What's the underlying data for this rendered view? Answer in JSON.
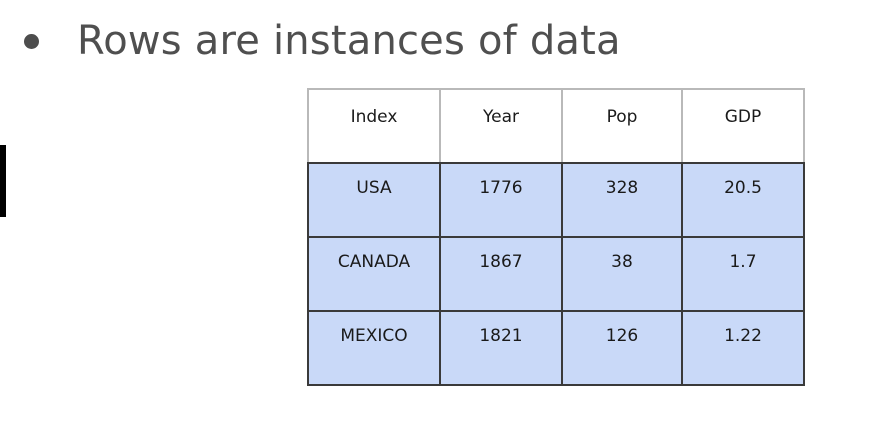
{
  "slide": {
    "headline": "Rows are instances of data"
  },
  "table": {
    "columns": [
      "Index",
      "Year",
      "Pop",
      "GDP"
    ],
    "rows": [
      [
        "USA",
        "1776",
        "328",
        "20.5"
      ],
      [
        "CANADA",
        "1867",
        "38",
        "1.7"
      ],
      [
        "MEXICO",
        "1821",
        "126",
        "1.22"
      ]
    ],
    "row_fill_color": "#c9d9f8",
    "header_fill_color": "#ffffff"
  }
}
